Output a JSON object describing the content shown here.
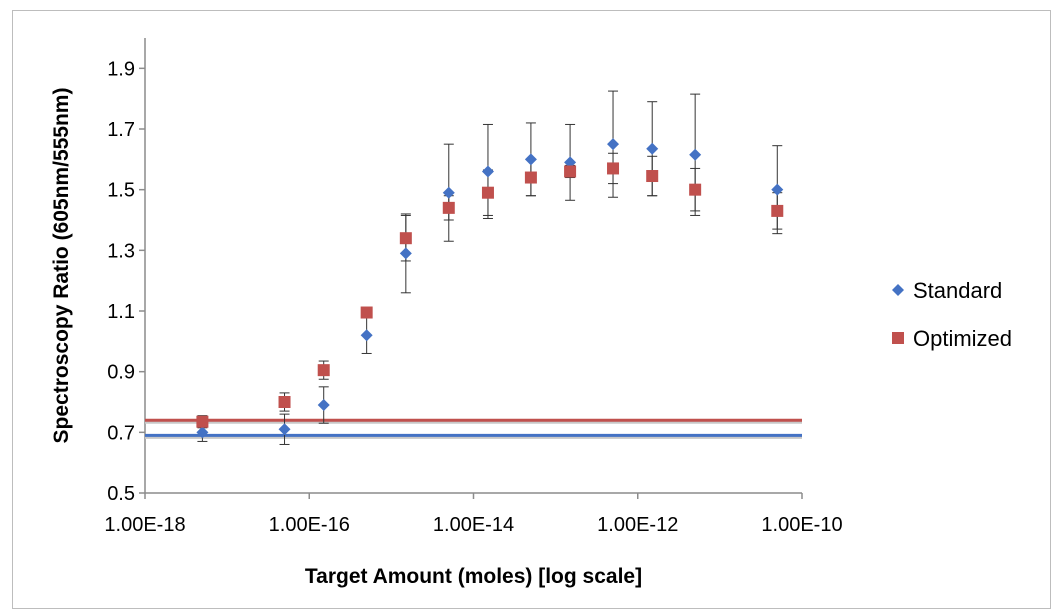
{
  "chart_data": {
    "type": "scatter",
    "xlabel": "Target Amount (moles) [log scale]",
    "ylabel": "Spectroscopy Ratio (605nm/555nm)",
    "x_scale": "log",
    "xlim": [
      1e-18,
      1e-10
    ],
    "ylim": [
      0.5,
      2.0
    ],
    "x_ticks": [
      {
        "value": 1e-18,
        "label": "1.00E-18"
      },
      {
        "value": 1e-16,
        "label": "1.00E-16"
      },
      {
        "value": 1e-14,
        "label": "1.00E-14"
      },
      {
        "value": 1e-12,
        "label": "1.00E-12"
      },
      {
        "value": 1e-10,
        "label": "1.00E-10"
      }
    ],
    "y_ticks": [
      {
        "value": 0.5,
        "label": "0.5"
      },
      {
        "value": 0.7,
        "label": "0.7"
      },
      {
        "value": 0.9,
        "label": "0.9"
      },
      {
        "value": 1.1,
        "label": "1.1"
      },
      {
        "value": 1.3,
        "label": "1.3"
      },
      {
        "value": 1.5,
        "label": "1.5"
      },
      {
        "value": 1.7,
        "label": "1.7"
      },
      {
        "value": 1.9,
        "label": "1.9"
      }
    ],
    "grid": false,
    "legend_position": "right",
    "series": [
      {
        "name": "Standard",
        "marker": "diamond",
        "color": "#4472C4",
        "baseline": 0.69,
        "points": [
          {
            "x": 5e-18,
            "y": 0.7,
            "err": 0.03
          },
          {
            "x": 5e-17,
            "y": 0.71,
            "err": 0.05
          },
          {
            "x": 1.5e-16,
            "y": 0.79,
            "err": 0.06
          },
          {
            "x": 5e-16,
            "y": 1.02,
            "err": 0.06
          },
          {
            "x": 1.5e-15,
            "y": 1.29,
            "err": 0.13
          },
          {
            "x": 5e-15,
            "y": 1.49,
            "err": 0.16
          },
          {
            "x": 1.5e-14,
            "y": 1.56,
            "err": 0.155
          },
          {
            "x": 5e-14,
            "y": 1.6,
            "err": 0.12
          },
          {
            "x": 1.5e-13,
            "y": 1.59,
            "err": 0.125
          },
          {
            "x": 5e-13,
            "y": 1.65,
            "err": 0.175
          },
          {
            "x": 1.5e-12,
            "y": 1.635,
            "err": 0.155
          },
          {
            "x": 5e-12,
            "y": 1.615,
            "err": 0.2
          },
          {
            "x": 5e-11,
            "y": 1.5,
            "err": 0.145
          }
        ]
      },
      {
        "name": "Optimized",
        "marker": "square",
        "color": "#C0504D",
        "baseline": 0.74,
        "points": [
          {
            "x": 5e-18,
            "y": 0.735,
            "err": 0.02
          },
          {
            "x": 5e-17,
            "y": 0.8,
            "err": 0.03
          },
          {
            "x": 1.5e-16,
            "y": 0.905,
            "err": 0.03
          },
          {
            "x": 5e-16,
            "y": 1.095,
            "err": 0.01
          },
          {
            "x": 1.5e-15,
            "y": 1.34,
            "err": 0.075
          },
          {
            "x": 5e-15,
            "y": 1.44,
            "err": 0.04
          },
          {
            "x": 1.5e-14,
            "y": 1.49,
            "err": 0.075
          },
          {
            "x": 5e-14,
            "y": 1.54,
            "err": 0.06
          },
          {
            "x": 1.5e-13,
            "y": 1.56,
            "err": 0.02
          },
          {
            "x": 5e-13,
            "y": 1.57,
            "err": 0.05
          },
          {
            "x": 1.5e-12,
            "y": 1.545,
            "err": 0.065
          },
          {
            "x": 5e-12,
            "y": 1.5,
            "err": 0.07
          },
          {
            "x": 5e-11,
            "y": 1.43,
            "err": 0.06
          }
        ]
      }
    ]
  }
}
